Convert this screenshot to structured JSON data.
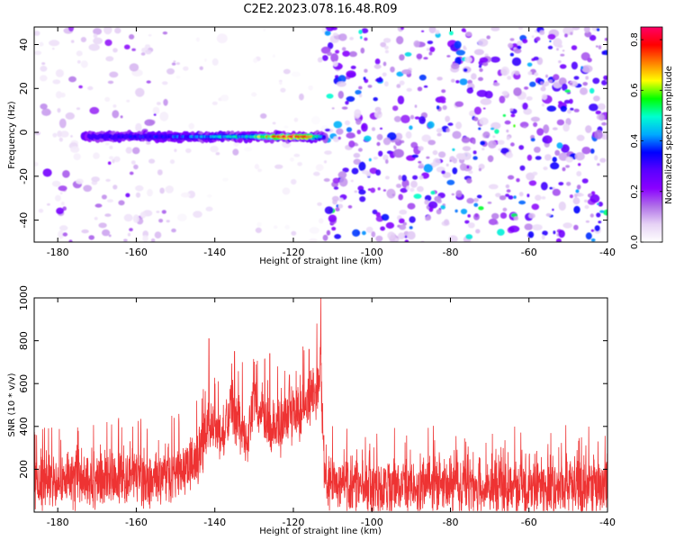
{
  "chart_data": [
    {
      "type": "heatmap",
      "title": "C2E2.2023.078.16.48.R09",
      "xlabel": "Height of straight line (km)",
      "ylabel": "Frequency (Hz)",
      "xlim": [
        -186,
        -40
      ],
      "ylim": [
        -50,
        48
      ],
      "x_ticks": [
        -180,
        -160,
        -140,
        -120,
        -100,
        -80,
        -60,
        -40
      ],
      "y_ticks": [
        -40,
        -20,
        0,
        20,
        40
      ],
      "colorbar": {
        "label": "Normalized spectral amplitude",
        "range": [
          0,
          0.85
        ],
        "ticks": [
          0.0,
          0.2,
          0.4,
          0.6,
          0.8
        ],
        "colors": [
          "#ffffff",
          "#e6d2f5",
          "#b070e8",
          "#8a00ff",
          "#5a00ff",
          "#0000ff",
          "#00aaff",
          "#00ffd0",
          "#00ff00",
          "#ffff00",
          "#ff8000",
          "#ff0000",
          "#ff0066"
        ]
      },
      "features": [
        {
          "x_range": [
            -172,
            -112
          ],
          "frequency": -2,
          "amplitude_profile": [
            [
              -172,
              0.28
            ],
            [
              -160,
              0.35
            ],
            [
              -150,
              0.38
            ],
            [
              -140,
              0.45
            ],
            [
              -130,
              0.55
            ],
            [
              -125,
              0.8
            ],
            [
              -118,
              0.85
            ],
            [
              -112,
              0.4
            ]
          ]
        }
      ],
      "noise_levels": [
        {
          "x_range": [
            -186,
            -150
          ],
          "amplitude": 0.08
        },
        {
          "x_range": [
            -150,
            -112
          ],
          "amplitude": 0.03
        },
        {
          "x_range": [
            -112,
            -40
          ],
          "amplitude": 0.17
        }
      ],
      "grid": false
    },
    {
      "type": "line",
      "title": "",
      "xlabel": "Height of straight line (km)",
      "ylabel": "SNR (10 * v/v)",
      "xlim": [
        -186,
        -40
      ],
      "ylim": [
        0,
        1000
      ],
      "x_ticks": [
        -180,
        -160,
        -140,
        -120,
        -100,
        -80,
        -60,
        -40
      ],
      "y_ticks": [
        200,
        400,
        600,
        800,
        1000
      ],
      "color": "#ee3333",
      "series": [
        {
          "x": [
            -186,
            -180,
            -175,
            -170,
            -165,
            -160,
            -155,
            -150,
            -145,
            -142,
            -140,
            -138,
            -136,
            -134,
            -132,
            -130,
            -128,
            -126,
            -124,
            -122,
            -120,
            -118,
            -116,
            -114,
            -113,
            -112,
            -110,
            -105,
            -100,
            -95,
            -90,
            -85,
            -80,
            -75,
            -70,
            -65,
            -60,
            -55,
            -50,
            -45,
            -40
          ],
          "y": [
            140,
            145,
            150,
            160,
            155,
            150,
            165,
            175,
            230,
            380,
            420,
            360,
            500,
            420,
            300,
            520,
            460,
            380,
            400,
            430,
            460,
            480,
            520,
            560,
            700,
            150,
            125,
            120,
            120,
            118,
            120,
            122,
            120,
            118,
            120,
            125,
            120,
            120,
            118,
            120,
            120
          ],
          "peaks": [
            {
              "x": -141.5,
              "y": 810
            },
            {
              "x": -135,
              "y": 750
            },
            {
              "x": -133,
              "y": 700
            },
            {
              "x": -130,
              "y": 700
            },
            {
              "x": -126,
              "y": 740
            },
            {
              "x": -124,
              "y": 680
            },
            {
              "x": -121,
              "y": 640
            },
            {
              "x": -116,
              "y": 760
            },
            {
              "x": -114,
              "y": 880
            },
            {
              "x": -113,
              "y": 1000
            }
          ],
          "noise_amplitude": 160
        }
      ],
      "grid": false
    }
  ]
}
